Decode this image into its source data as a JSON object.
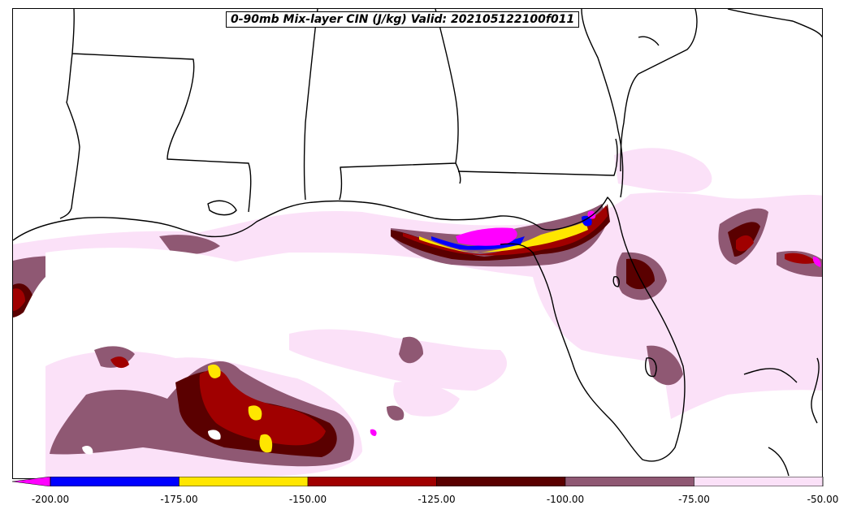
{
  "map": {
    "title": "0-90mb Mix-layer CIN (J/kg) Valid: 202105122100f011"
  },
  "colorbar": {
    "min_extension_color": "#ff00ff",
    "bins": [
      {
        "from": -200,
        "to": -175,
        "color": "#0000ff"
      },
      {
        "from": -175,
        "to": -150,
        "color": "#ffe600"
      },
      {
        "from": -150,
        "to": -125,
        "color": "#a00000"
      },
      {
        "from": -125,
        "to": -100,
        "color": "#5a0000"
      },
      {
        "from": -100,
        "to": -75,
        "color": "#8f5873"
      },
      {
        "from": -75,
        "to": -50,
        "color": "#fbe1f8"
      }
    ],
    "ticks": [
      "-200.00",
      "-175.00",
      "-150.00",
      "-125.00",
      "-100.00",
      "-75.00",
      "-50.00"
    ]
  }
}
